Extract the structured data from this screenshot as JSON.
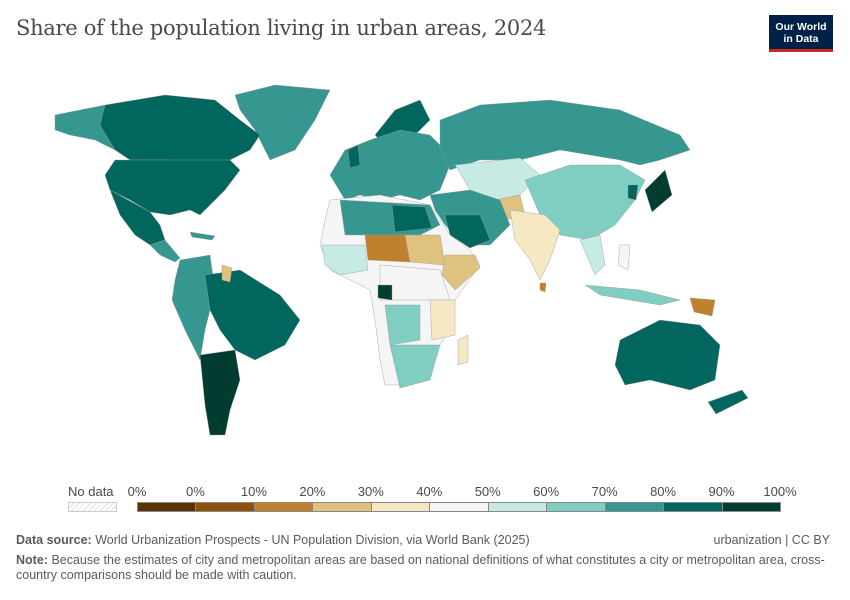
{
  "title": "Share of the population living in urban areas, 2024",
  "logo": {
    "line1": "Our World",
    "line2": "in Data",
    "color": "#002147",
    "accent": "#ce261e"
  },
  "chart_data": {
    "type": "choropleth",
    "title": "Share of the population living in urban areas, 2024",
    "legend": {
      "no_data_label": "No data",
      "tick_labels": [
        "0%",
        "0%",
        "10%",
        "20%",
        "30%",
        "40%",
        "50%",
        "60%",
        "70%",
        "80%",
        "90%",
        "100%"
      ],
      "bin_colors": [
        "#583307",
        "#8c510a",
        "#bf812d",
        "#dfc27d",
        "#f6e8c3",
        "#f5f5f5",
        "#c7eae5",
        "#80cdc1",
        "#35978f",
        "#01665e",
        "#003c30"
      ],
      "placement": "bottom"
    }
  },
  "footer": {
    "source_label": "Data source:",
    "source_text": "World Urbanization Prospects - UN Population Division, via World Bank (2025)",
    "license": "urbanization | CC BY",
    "note_label": "Note:",
    "note_text": "Because the estimates of city and metropolitan areas are based on national definitions of what constitutes a city or metropolitan area, cross-country comparisons should be made with caution."
  }
}
